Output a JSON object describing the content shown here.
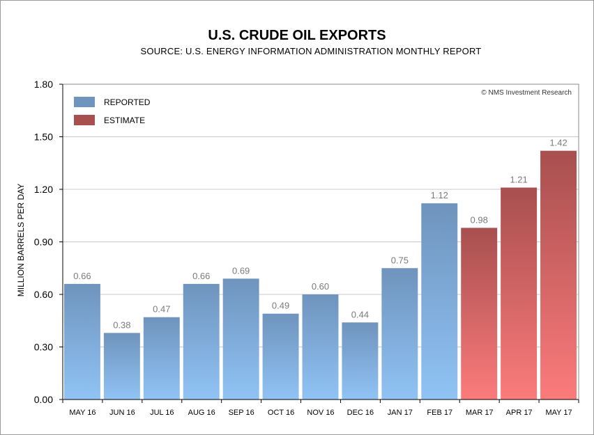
{
  "chart_data": {
    "type": "bar",
    "title": "U.S. CRUDE OIL EXPORTS",
    "subtitle": "SOURCE: U.S. ENERGY INFORMATION ADMINISTRATION MONTHLY REPORT",
    "xlabel": "",
    "ylabel": "MILLION BARRELS PER DAY",
    "ylim": [
      0,
      1.8
    ],
    "yticks": [
      "0.00",
      "0.30",
      "0.60",
      "0.90",
      "1.20",
      "1.50",
      "1.80"
    ],
    "grid": true,
    "legend_position": "top-left",
    "credit": "© NMS Investment Research",
    "categories": [
      "MAY 16",
      "JUN 16",
      "JUL 16",
      "AUG 16",
      "SEP 16",
      "OCT 16",
      "NOV 16",
      "DEC 16",
      "JAN 17",
      "FEB 17",
      "MAR 17",
      "APR 17",
      "MAY 17"
    ],
    "values": [
      0.66,
      0.38,
      0.47,
      0.66,
      0.69,
      0.49,
      0.6,
      0.44,
      0.75,
      1.12,
      0.98,
      1.21,
      1.42
    ],
    "value_labels": [
      "0.66",
      "0.38",
      "0.47",
      "0.66",
      "0.69",
      "0.49",
      "0.60",
      "0.44",
      "0.75",
      "1.12",
      "0.98",
      "1.21",
      "1.42"
    ],
    "series": [
      {
        "name": "REPORTED",
        "color": "#6f94bd",
        "color_light": "#90c3f5",
        "categories": [
          "MAY 16",
          "JUN 16",
          "JUL 16",
          "AUG 16",
          "SEP 16",
          "OCT 16",
          "NOV 16",
          "DEC 16",
          "JAN 17",
          "FEB 17"
        ]
      },
      {
        "name": "ESTIMATE",
        "color": "#a84f4f",
        "color_light": "#fc7b7b",
        "categories": [
          "MAR 17",
          "APR 17",
          "MAY 17"
        ]
      }
    ]
  }
}
